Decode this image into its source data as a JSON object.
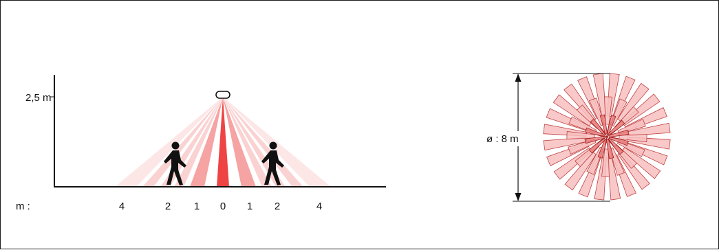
{
  "side_view": {
    "height_label": "2,5 m",
    "axis_unit_label": "m :",
    "ticks": [
      {
        "label": "4",
        "offset_m": -4
      },
      {
        "label": "2",
        "offset_m": -2
      },
      {
        "label": "1",
        "offset_m": -1
      },
      {
        "label": "0",
        "offset_m": 0
      },
      {
        "label": "1",
        "offset_m": 1
      },
      {
        "label": "2",
        "offset_m": 2
      },
      {
        "label": "4",
        "offset_m": 4
      }
    ],
    "mount_height_m": 2.5
  },
  "top_view": {
    "diameter_label": "ø : 8 m",
    "diameter_m": 8
  },
  "colors": {
    "zone_core": "#ee4444",
    "zone_mid": "#f6a3a3",
    "zone_light": "#fad2d2",
    "zone_outer": "#fde6e6",
    "petal_fill": "#f8c0c0",
    "petal_stroke": "#c04040",
    "petal_dark": "#a02020",
    "line": "#111111"
  }
}
